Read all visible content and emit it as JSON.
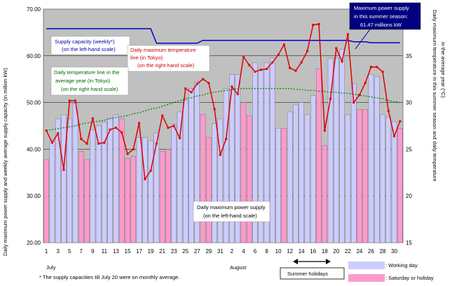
{
  "chart_data": {
    "type": "bar",
    "categories": [
      "1",
      "2",
      "3",
      "4",
      "5",
      "6",
      "7",
      "8",
      "9",
      "10",
      "11",
      "12",
      "13",
      "14",
      "15",
      "16",
      "17",
      "18",
      "19",
      "20",
      "21",
      "22",
      "23",
      "24",
      "25",
      "26",
      "27",
      "28",
      "29",
      "30",
      "31",
      "1",
      "2",
      "3",
      "4",
      "5",
      "6",
      "7",
      "8",
      "9",
      "10",
      "11",
      "12",
      "13",
      "14",
      "15",
      "16",
      "17",
      "18",
      "19",
      "20",
      "21",
      "22",
      "23",
      "24",
      "25",
      "26",
      "27",
      "28",
      "29",
      "30",
      "31"
    ],
    "x_tick_labels": [
      "1",
      "3",
      "5",
      "7",
      "9",
      "11",
      "13",
      "15",
      "17",
      "19",
      "21",
      "23",
      "25",
      "27",
      "29",
      "31",
      "2",
      "4",
      "6",
      "8",
      "10",
      "12",
      "14",
      "16",
      "18",
      "20",
      "22",
      "24",
      "26",
      "28",
      "30"
    ],
    "month_labels": [
      "July",
      "August"
    ],
    "day_type": [
      "S",
      "W",
      "W",
      "W",
      "W",
      "W",
      "S",
      "S",
      "W",
      "W",
      "W",
      "W",
      "W",
      "S",
      "S",
      "S",
      "W",
      "W",
      "W",
      "W",
      "S",
      "S",
      "W",
      "W",
      "W",
      "W",
      "W",
      "S",
      "S",
      "W",
      "W",
      "W",
      "W",
      "W",
      "S",
      "S",
      "W",
      "W",
      "W",
      "W",
      "W",
      "S",
      "W",
      "W",
      "W",
      "W",
      "W",
      "S",
      "S",
      "W",
      "W",
      "W",
      "W",
      "W",
      "S",
      "S",
      "W",
      "W",
      "W",
      "W",
      "W",
      "S"
    ],
    "series": [
      {
        "kind": "bar",
        "values": [
          37.8,
          41.8,
          46.5,
          47.4,
          46.5,
          49.8,
          39.5,
          37.8,
          44.1,
          45.0,
          45.8,
          46.5,
          47.4,
          46.5,
          38.0,
          38.5,
          42.5,
          42.5,
          41.8,
          43.5,
          39.5,
          40.0,
          45.4,
          48.0,
          50.5,
          53.0,
          54.5,
          47.5,
          42.5,
          45.5,
          46.5,
          53.0,
          56.0,
          56.0,
          50.0,
          47.2,
          58.5,
          57.0,
          58.5,
          59.5,
          44.5,
          44.5,
          48.0,
          49.5,
          50.0,
          47.4,
          51.5,
          57.2,
          40.8,
          59.5,
          59.5,
          61.4,
          47.4,
          54.0,
          48.5,
          48.5,
          56.0,
          55.5,
          47.4,
          46.9,
          45.9,
          44.5
        ]
      },
      {
        "kind": "line",
        "name": "Supply capacity (weekly*) (on the left-hand scale)",
        "color": "#0000cc",
        "values": [
          65.8,
          65.8,
          65.8,
          65.8,
          65.8,
          65.8,
          65.8,
          65.8,
          65.8,
          65.8,
          65.8,
          65.8,
          65.8,
          65.8,
          65.8,
          65.8,
          65.8,
          65.8,
          65.8,
          62.7,
          62.7,
          62.7,
          62.7,
          62.7,
          62.7,
          62.7,
          62.7,
          63.3,
          63.3,
          63.3,
          63.3,
          63.3,
          63.3,
          63.3,
          63.3,
          63.3,
          63.3,
          63.3,
          63.3,
          63.3,
          63.3,
          63.3,
          63.3,
          63.3,
          63.3,
          63.3,
          63.3,
          63.3,
          63.3,
          63.3,
          63.3,
          63.3,
          63.3,
          63.0,
          63.0,
          63.0,
          62.8,
          62.8,
          62.8,
          62.8,
          62.8,
          62.8
        ]
      },
      {
        "kind": "line",
        "name": "Daily maximum temperature line (in Tokyo) (on the right-hand scale)",
        "color": "#dd0000",
        "values": [
          27.0,
          25.7,
          26.7,
          22.8,
          30.2,
          30.2,
          26.1,
          25.6,
          28.3,
          25.6,
          25.7,
          27.1,
          27.3,
          26.8,
          24.5,
          25.0,
          27.8,
          21.8,
          22.7,
          25.6,
          28.6,
          27.3,
          27.5,
          26.2,
          31.5,
          31.1,
          32.0,
          32.5,
          32.1,
          29.3,
          24.4,
          26.1,
          31.7,
          30.9,
          34.9,
          34.0,
          33.3,
          33.5,
          33.6,
          34.3,
          35.1,
          36.2,
          33.7,
          33.4,
          34.3,
          35.5,
          38.3,
          38.4,
          27.0,
          30.4,
          35.8,
          34.4,
          37.3,
          30.0,
          30.8,
          32.1,
          33.8,
          33.8,
          33.3,
          29.1,
          26.4,
          28.0
        ]
      },
      {
        "kind": "line",
        "name": "Daily temperature line in the average year (in Tokyo) (on the right-hand scale)",
        "color": "#008800",
        "dash": true,
        "values": [
          27.0,
          27.1,
          27.2,
          27.3,
          27.4,
          27.5,
          27.7,
          27.8,
          27.9,
          28.0,
          28.1,
          28.3,
          28.4,
          28.5,
          28.6,
          28.8,
          28.9,
          29.1,
          29.3,
          29.4,
          29.6,
          29.8,
          30.0,
          30.2,
          30.4,
          30.5,
          30.7,
          30.8,
          31.0,
          31.1,
          31.2,
          31.3,
          31.4,
          31.5,
          31.5,
          31.5,
          31.5,
          31.5,
          31.5,
          31.5,
          31.5,
          31.5,
          31.5,
          31.4,
          31.4,
          31.3,
          31.3,
          31.2,
          31.2,
          31.1,
          31.1,
          31.0,
          31.0,
          30.9,
          30.8,
          30.7,
          30.6,
          30.5,
          30.4,
          30.2,
          30.1,
          30.0
        ]
      }
    ],
    "ylabel": "Daily maximum power supply and weekly average supply capacity (in million kW)",
    "y2label": "Daily maximum temperature in this summer season and daily temperature in the average year (°C)",
    "ylim": [
      20,
      70
    ],
    "y2lim": [
      15,
      40
    ],
    "y_tick_labels": [
      "20.00",
      "30.00",
      "40.00",
      "50.00",
      "60.00",
      "70.00"
    ],
    "y2_tick_labels": [
      "15",
      "20",
      "25",
      "30",
      "35"
    ],
    "grid": true,
    "colors": {
      "working_day": "#ccccff",
      "saturday_holiday": "#ff99cc",
      "plot_bg": "#c0c0c0",
      "supply": "#0000cc",
      "temp": "#dd0000",
      "avg_temp": "#008800",
      "max_box": "#000080"
    }
  },
  "annotations": {
    "supply_capacity": [
      "Supply capacity (weekly*)",
      "(on the left-hand scale)"
    ],
    "max_temp": [
      "Daily maximum temperature",
      "line (in Tokyo)",
      "(on the right-hand scale)"
    ],
    "avg_temp": [
      "Daily temperature line in the",
      "average year (in Tokyo)",
      "(on the right-hand scale)"
    ],
    "max_power_label": [
      "Daily maximum power supply",
      "(on the left-hand scale)"
    ],
    "max_supply_box": [
      "Maximum power supply",
      "in this summer season:",
      "61.47 millions kW"
    ]
  },
  "footnote": "* The supply capacities till July 20 were on monthly average.",
  "summer_holidays": "Summer holidays",
  "legend": {
    "working_day": ": Working day",
    "saturday_holiday": ": Saturday or holiday"
  }
}
